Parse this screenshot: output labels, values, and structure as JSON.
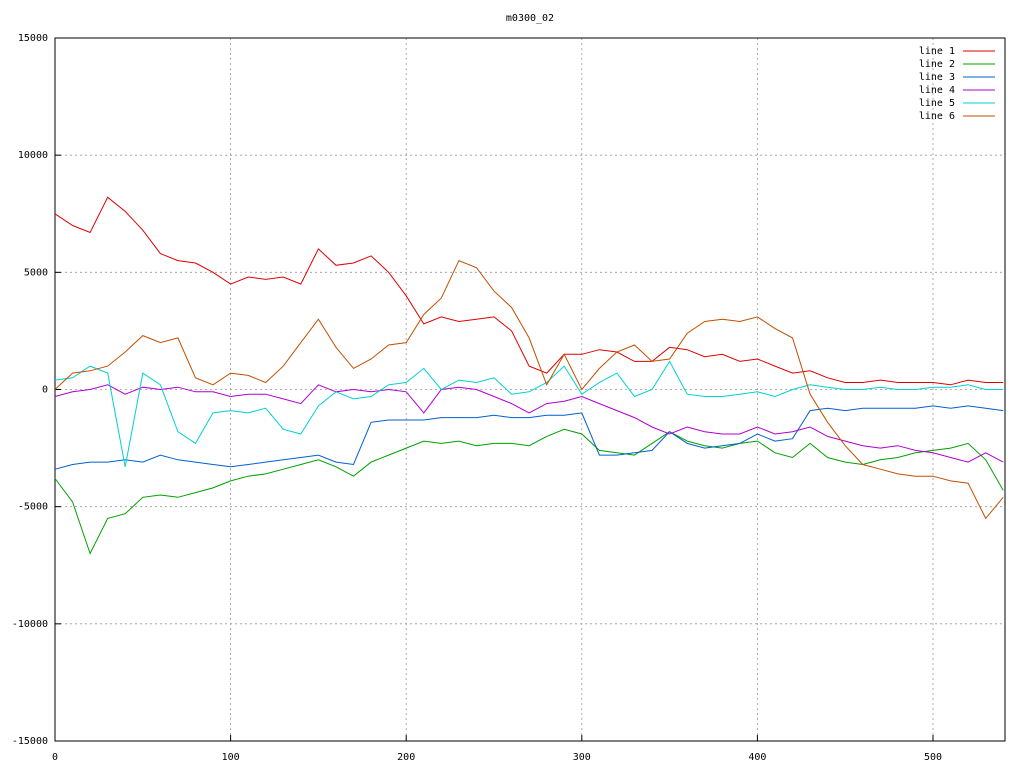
{
  "chart_data": {
    "type": "line",
    "title": "m0300_02",
    "x": [
      0,
      10,
      20,
      30,
      40,
      50,
      60,
      70,
      80,
      90,
      100,
      110,
      120,
      130,
      140,
      150,
      160,
      170,
      180,
      190,
      200,
      210,
      220,
      230,
      240,
      250,
      260,
      270,
      280,
      290,
      300,
      310,
      320,
      330,
      340,
      350,
      360,
      370,
      380,
      390,
      400,
      410,
      420,
      430,
      440,
      450,
      460,
      470,
      480,
      490,
      500,
      510,
      520,
      530,
      540
    ],
    "xlim": [
      0,
      541
    ],
    "xticks": [
      0,
      100,
      200,
      300,
      400,
      500
    ],
    "ylim": [
      -15000,
      15000
    ],
    "yticks": [
      -15000,
      -10000,
      -5000,
      0,
      5000,
      10000,
      15000
    ],
    "grid": true,
    "legend": "top-right",
    "series": [
      {
        "name": "line 1",
        "color": "#e00000",
        "values": [
          7500,
          7000,
          6700,
          8200,
          7600,
          6800,
          5800,
          5500,
          5400,
          5000,
          4500,
          4800,
          4700,
          4800,
          4500,
          6000,
          5300,
          5400,
          5700,
          5000,
          4000,
          2800,
          3100,
          2900,
          3000,
          3100,
          2500,
          1000,
          700,
          1500,
          1500,
          1700,
          1600,
          1200,
          1200,
          1800,
          1700,
          1400,
          1500,
          1200,
          1300,
          1000,
          700,
          800,
          500,
          300,
          300,
          400,
          300,
          300,
          300,
          200,
          400,
          300,
          300
        ]
      },
      {
        "name": "line 2",
        "color": "#00a000",
        "values": [
          -3800,
          -4800,
          -7000,
          -5500,
          -5300,
          -4600,
          -4500,
          -4600,
          -4400,
          -4200,
          -3900,
          -3700,
          -3600,
          -3400,
          -3200,
          -3000,
          -3300,
          -3700,
          -3100,
          -2800,
          -2500,
          -2200,
          -2300,
          -2200,
          -2400,
          -2300,
          -2300,
          -2400,
          -2000,
          -1700,
          -1900,
          -2600,
          -2700,
          -2800,
          -2300,
          -1800,
          -2200,
          -2400,
          -2500,
          -2300,
          -2200,
          -2700,
          -2900,
          -2300,
          -2900,
          -3100,
          -3200,
          -3000,
          -2900,
          -2700,
          -2600,
          -2500,
          -2300,
          -3000,
          -4300
        ]
      },
      {
        "name": "line 3",
        "color": "#0060d0",
        "values": [
          -3400,
          -3200,
          -3100,
          -3100,
          -3000,
          -3100,
          -2800,
          -3000,
          -3100,
          -3200,
          -3300,
          -3200,
          -3100,
          -3000,
          -2900,
          -2800,
          -3100,
          -3200,
          -1400,
          -1300,
          -1300,
          -1300,
          -1200,
          -1200,
          -1200,
          -1100,
          -1200,
          -1200,
          -1100,
          -1100,
          -1000,
          -2800,
          -2800,
          -2700,
          -2600,
          -1800,
          -2300,
          -2500,
          -2400,
          -2300,
          -1900,
          -2200,
          -2100,
          -900,
          -800,
          -900,
          -800,
          -800,
          -800,
          -800,
          -700,
          -800,
          -700,
          -800,
          -900
        ]
      },
      {
        "name": "line 4",
        "color": "#b000d0",
        "values": [
          -300,
          -100,
          0,
          200,
          -200,
          100,
          0,
          100,
          -100,
          -100,
          -300,
          -200,
          -200,
          -400,
          -600,
          200,
          -100,
          0,
          -100,
          0,
          -100,
          -1000,
          0,
          100,
          0,
          -300,
          -600,
          -1000,
          -600,
          -500,
          -300,
          -600,
          -900,
          -1200,
          -1600,
          -1900,
          -1600,
          -1800,
          -1900,
          -1900,
          -1600,
          -1900,
          -1800,
          -1600,
          -2000,
          -2200,
          -2400,
          -2500,
          -2400,
          -2600,
          -2700,
          -2900,
          -3100,
          -2700,
          -3100
        ]
      },
      {
        "name": "line 5",
        "color": "#00d0d0",
        "values": [
          400,
          500,
          1000,
          700,
          -3300,
          700,
          200,
          -1800,
          -2300,
          -1000,
          -900,
          -1000,
          -800,
          -1700,
          -1900,
          -700,
          -100,
          -400,
          -300,
          200,
          300,
          900,
          0,
          400,
          300,
          500,
          -200,
          -100,
          300,
          1000,
          -200,
          300,
          700,
          -300,
          0,
          1200,
          -200,
          -300,
          -300,
          -200,
          -100,
          -300,
          0,
          200,
          100,
          0,
          0,
          100,
          0,
          0,
          100,
          100,
          200,
          0,
          0
        ]
      },
      {
        "name": "line 6",
        "color": "#c05000",
        "values": [
          0,
          700,
          800,
          1000,
          1600,
          2300,
          2000,
          2200,
          500,
          200,
          700,
          600,
          300,
          1000,
          2000,
          3000,
          1800,
          900,
          1300,
          1900,
          2000,
          3200,
          3900,
          5500,
          5200,
          4200,
          3500,
          2200,
          200,
          1500,
          0,
          900,
          1600,
          1900,
          1200,
          1300,
          2400,
          2900,
          3000,
          2900,
          3100,
          2600,
          2200,
          -200,
          -1400,
          -2400,
          -3200,
          -3400,
          -3600,
          -3700,
          -3700,
          -3900,
          -4000,
          -5500,
          -4600
        ]
      }
    ]
  }
}
